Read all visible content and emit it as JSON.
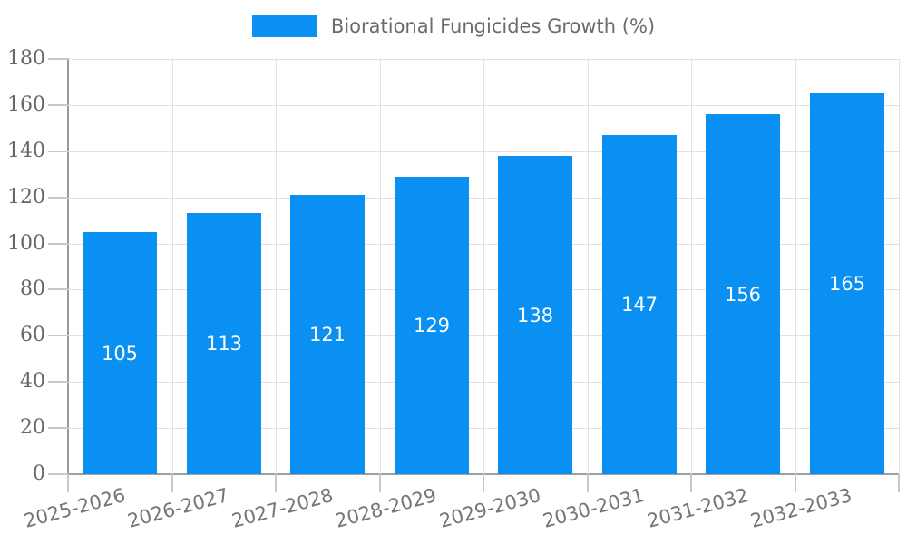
{
  "chart_data": {
    "type": "bar",
    "title": "",
    "legend": "Biorational Fungicides Growth (%)",
    "legend_position": "top-center",
    "categories": [
      "2025-2026",
      "2026-2027",
      "2027-2028",
      "2028-2029",
      "2029-2030",
      "2030-2031",
      "2031-2032",
      "2032-2033"
    ],
    "values": [
      105,
      113,
      121,
      129,
      138,
      147,
      156,
      165
    ],
    "xlabel": "",
    "ylabel": "",
    "ylim": [
      0,
      180
    ],
    "ytick_step": 20,
    "yticks": [
      0,
      20,
      40,
      60,
      80,
      100,
      120,
      140,
      160,
      180
    ],
    "grid": true,
    "value_labels_inside_bars": true,
    "colors": {
      "bar": "#0a90f2",
      "grid": "#e2e2e2",
      "axis": "#999999",
      "tick": "#c8c8c8",
      "y_tick_label": "#666666",
      "x_tick_label": "#757575",
      "legend_text": "#6b6b6b",
      "value_label": "#ffffff",
      "background": "#ffffff"
    }
  }
}
